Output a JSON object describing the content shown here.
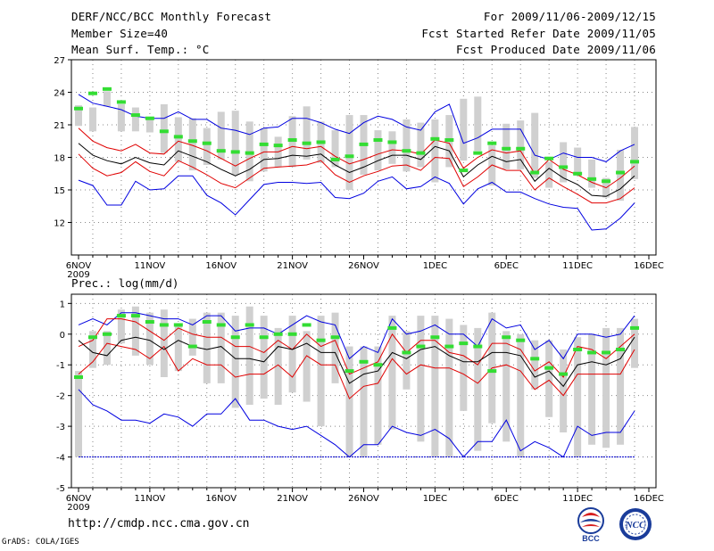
{
  "header": {
    "title": "DERF/NCC/BCC Monthly Forecast",
    "member_size": "Member Size=40",
    "variable": "Mean Surf. Temp.: °C",
    "forecast_range": "For 2009/11/06-2009/12/15",
    "start_date": "Fcst Started Refer Date 2009/11/05",
    "produced_date": "Fcst Produced Date 2009/11/06"
  },
  "footer": {
    "url": "http://cmdp.ncc.cma.gov.cn",
    "credit": "GrADS: COLA/IGES",
    "logo_left_text": "BCC",
    "logo_right_text": "NCC"
  },
  "colors": {
    "max_min": "#0000e0",
    "std": "#e00000",
    "mean": "#000000",
    "box": "#d0d0d0",
    "member": "#33dd33",
    "floor": "#0000cc"
  },
  "chart_data": [
    {
      "type": "box-ensemble",
      "title": "Mean Surf. Temp.: °C",
      "x_tick_labels": [
        "6NOV",
        "11NOV",
        "16NOV",
        "21NOV",
        "26NOV",
        "1DEC",
        "6DEC",
        "11DEC",
        "16DEC"
      ],
      "x_tick_days": [
        1,
        6,
        11,
        16,
        21,
        26,
        31,
        36,
        41
      ],
      "x_year_label": "2009",
      "xlim": [
        0.5,
        41.5
      ],
      "ylim": [
        9,
        27
      ],
      "y_ticks": [
        12,
        15,
        18,
        21,
        24,
        27
      ],
      "days": [
        1,
        2,
        3,
        4,
        5,
        6,
        7,
        8,
        9,
        10,
        11,
        12,
        13,
        14,
        15,
        16,
        17,
        18,
        19,
        20,
        21,
        22,
        23,
        24,
        25,
        26,
        27,
        28,
        29,
        30,
        31,
        32,
        33,
        34,
        35,
        36,
        37,
        38,
        39,
        40
      ],
      "series": [
        {
          "name": "max",
          "values": [
            23.8,
            23,
            22.7,
            22.4,
            21.8,
            21.6,
            21.6,
            22.2,
            21.5,
            21.5,
            20.7,
            20.5,
            20.1,
            20.7,
            20.8,
            21.6,
            21.6,
            21.2,
            20.6,
            20.2,
            21.2,
            21.8,
            21.5,
            20.8,
            20.5,
            22.2,
            22.9,
            19.3,
            19.8,
            20.6,
            20.6,
            20.6,
            18.2,
            17.8,
            18.4,
            18,
            18,
            17.6,
            18.6,
            19.2
          ]
        },
        {
          "name": "mean_plus_std",
          "values": [
            20.7,
            19.5,
            18.9,
            18.6,
            19.2,
            18.4,
            18.3,
            19.5,
            19.1,
            18.6,
            17.9,
            17.2,
            17.9,
            18.5,
            18.5,
            19,
            18.8,
            19,
            18.1,
            17.4,
            17.8,
            18.3,
            18.7,
            18.6,
            18.3,
            19.6,
            19.3,
            17,
            18,
            18.7,
            18.4,
            18.6,
            16.5,
            17.8,
            16.9,
            16.4,
            15.7,
            15.2,
            16.1,
            17.2
          ]
        },
        {
          "name": "mean",
          "values": [
            19.3,
            18.2,
            17.7,
            17.4,
            18,
            17.5,
            17.3,
            18.6,
            18.1,
            17.6,
            16.9,
            16.3,
            16.9,
            17.8,
            17.9,
            18.2,
            18.1,
            18.3,
            17.3,
            16.6,
            17.1,
            17.7,
            18.2,
            18.2,
            17.8,
            19,
            18.6,
            16.2,
            17.3,
            18.1,
            17.6,
            17.8,
            15.8,
            17,
            16.1,
            15.5,
            14.5,
            14.4,
            15.1,
            16.3
          ]
        },
        {
          "name": "mean_minus_std",
          "values": [
            18.3,
            17,
            16.3,
            16.6,
            17.6,
            16.7,
            16.3,
            17.7,
            17.1,
            16.4,
            15.6,
            15.2,
            16.1,
            17,
            17.1,
            17.2,
            17.3,
            17.7,
            16.4,
            15.7,
            16.3,
            16.7,
            17.2,
            17.3,
            16.8,
            18,
            17.9,
            15.3,
            16.2,
            17.3,
            16.8,
            16.8,
            15,
            16.1,
            15.3,
            14.6,
            13.8,
            13.8,
            14.2,
            15.2
          ]
        },
        {
          "name": "min",
          "values": [
            15.9,
            15.4,
            13.6,
            13.6,
            15.8,
            15,
            15.1,
            16.3,
            16.3,
            14.5,
            13.8,
            12.7,
            14.1,
            15.5,
            15.7,
            15.7,
            15.6,
            15.7,
            14.3,
            14.2,
            14.7,
            15.8,
            16.2,
            15.1,
            15.3,
            16.2,
            15.6,
            13.7,
            15.1,
            15.7,
            14.8,
            14.8,
            14.2,
            13.7,
            13.4,
            13.3,
            11.3,
            11.4,
            12.4,
            13.8
          ]
        },
        {
          "name": "box_top",
          "values": [
            22.8,
            22.6,
            24.1,
            22.9,
            22.6,
            21.6,
            22.9,
            21.7,
            21.6,
            20.7,
            22.2,
            22.3,
            21.3,
            20.7,
            19.9,
            21.8,
            22.7,
            21.3,
            20.5,
            21.9,
            21.9,
            20.5,
            20.4,
            21.5,
            21.2,
            21.5,
            21.9,
            23.4,
            23.6,
            19.1,
            21.1,
            21.4,
            22.1,
            17.6,
            19.4,
            18.9,
            17.8,
            16.1,
            18.7,
            20.8
          ]
        },
        {
          "name": "box_bottom",
          "values": [
            20.9,
            20.4,
            22.7,
            20.4,
            20.4,
            20.3,
            18.4,
            17.6,
            16.8,
            17.3,
            17.8,
            16.4,
            15.8,
            16.7,
            17.1,
            17.1,
            17.8,
            17.5,
            17.1,
            15,
            16.4,
            16.8,
            17.4,
            16.7,
            17.1,
            15.7,
            17.1,
            17.7,
            18.6,
            15.4,
            16.9,
            16.9,
            16.1,
            15.2,
            15.7,
            16.3,
            15.2,
            14.3,
            14,
            16
          ]
        },
        {
          "name": "member",
          "values": [
            22.5,
            23.9,
            24.3,
            23.1,
            21.9,
            21.6,
            20.4,
            19.9,
            19.5,
            19.3,
            18.6,
            18.5,
            18.4,
            19.2,
            19.1,
            19.6,
            19.3,
            19.4,
            17.8,
            18.1,
            19.2,
            19.6,
            19.4,
            18.6,
            18.4,
            19.7,
            19.6,
            16.8,
            18.4,
            19.3,
            18.8,
            18.8,
            16.6,
            17.9,
            17.1,
            16.5,
            16,
            15.8,
            16.6,
            17.6
          ]
        }
      ]
    },
    {
      "type": "box-ensemble",
      "title": "Prec.: log(mm/d)",
      "x_tick_labels": [
        "6NOV",
        "11NOV",
        "16NOV",
        "21NOV",
        "26NOV",
        "1DEC",
        "6DEC",
        "11DEC",
        "16DEC"
      ],
      "x_tick_days": [
        1,
        6,
        11,
        16,
        21,
        26,
        31,
        36,
        41
      ],
      "x_year_label": "2009",
      "xlim": [
        0.5,
        41.5
      ],
      "ylim": [
        -5,
        1.3
      ],
      "y_ticks": [
        -5,
        -4,
        -3,
        -2,
        -1,
        0,
        1
      ],
      "days": [
        1,
        2,
        3,
        4,
        5,
        6,
        7,
        8,
        9,
        10,
        11,
        12,
        13,
        14,
        15,
        16,
        17,
        18,
        19,
        20,
        21,
        22,
        23,
        24,
        25,
        26,
        27,
        28,
        29,
        30,
        31,
        32,
        33,
        34,
        35,
        36,
        37,
        38,
        39,
        40
      ],
      "series": [
        {
          "name": "max",
          "values": [
            0.3,
            0.5,
            0.3,
            0.7,
            0.7,
            0.6,
            0.5,
            0.5,
            0.3,
            0.6,
            0.6,
            0.1,
            0.2,
            0.2,
            0,
            0.3,
            0.6,
            0.4,
            0.3,
            -0.8,
            -0.4,
            -0.6,
            0.5,
            0,
            0.1,
            0.3,
            0,
            0,
            -0.4,
            0.5,
            0.2,
            0.3,
            -0.5,
            -0.2,
            -0.8,
            0,
            0,
            -0.1,
            0,
            0.6
          ]
        },
        {
          "name": "mean_plus_std",
          "values": [
            -0.4,
            -0.2,
            0.5,
            0.5,
            0.4,
            0.1,
            -0.2,
            0.2,
            0,
            -0.1,
            -0.1,
            -0.4,
            -0.4,
            -0.6,
            -0.2,
            -0.5,
            0,
            -0.4,
            -0.2,
            -1.3,
            -1.1,
            -0.9,
            0,
            -0.6,
            -0.2,
            -0.2,
            -0.6,
            -0.7,
            -1,
            -0.3,
            -0.3,
            -0.5,
            -1.2,
            -0.9,
            -1.4,
            -0.4,
            -0.5,
            -0.8,
            -0.4,
            0
          ]
        },
        {
          "name": "mean",
          "values": [
            -0.2,
            -0.6,
            -0.7,
            -0.2,
            -0.1,
            -0.2,
            -0.5,
            -0.2,
            -0.4,
            -0.5,
            -0.4,
            -0.8,
            -0.8,
            -0.9,
            -0.4,
            -0.5,
            -0.3,
            -0.6,
            -0.6,
            -1.6,
            -1.3,
            -1.2,
            -0.6,
            -0.8,
            -0.5,
            -0.4,
            -0.7,
            -0.9,
            -0.9,
            -0.6,
            -0.6,
            -0.7,
            -1.4,
            -1.2,
            -1.7,
            -1,
            -0.9,
            -1,
            -0.8,
            -0.1
          ]
        },
        {
          "name": "mean_minus_std",
          "values": [
            -1.3,
            -0.9,
            -0.3,
            -0.4,
            -0.5,
            -0.8,
            -0.4,
            -1.2,
            -0.8,
            -1,
            -1,
            -1.4,
            -1.3,
            -1.3,
            -1,
            -1.4,
            -0.7,
            -1,
            -1,
            -2.1,
            -1.7,
            -1.6,
            -0.8,
            -1.3,
            -1,
            -1.1,
            -1.1,
            -1.3,
            -1.6,
            -1.1,
            -1,
            -1.2,
            -1.8,
            -1.5,
            -2,
            -1.3,
            -1.3,
            -1.3,
            -1.3,
            -0.5
          ]
        },
        {
          "name": "min",
          "values": [
            -1.8,
            -2.3,
            -2.5,
            -2.8,
            -2.8,
            -2.9,
            -2.6,
            -2.7,
            -3,
            -2.6,
            -2.6,
            -2.1,
            -2.8,
            -2.8,
            -3,
            -3.1,
            -3,
            -3.3,
            -3.6,
            -4,
            -3.6,
            -3.6,
            -3,
            -3.2,
            -3.3,
            -3.1,
            -3.4,
            -4,
            -3.5,
            -3.5,
            -2.8,
            -3.8,
            -3.5,
            -3.7,
            -4,
            -3,
            -3.3,
            -3.2,
            -3.2,
            -2.5
          ]
        },
        {
          "name": "box_top",
          "values": [
            -1.2,
            0.1,
            0.1,
            0.8,
            0.9,
            0.7,
            0.8,
            0.3,
            0.5,
            0.7,
            0.7,
            0.6,
            0.9,
            0.6,
            0.2,
            0.6,
            0.1,
            0.6,
            0.7,
            -0.4,
            -0.4,
            -0.4,
            0.6,
            0.1,
            0.6,
            0.6,
            0.5,
            0.3,
            0.2,
            0.7,
            0.1,
            0,
            -0.2,
            -0.2,
            -0.5,
            -0.1,
            0,
            0.2,
            0.2,
            0.5
          ]
        },
        {
          "name": "box_bottom",
          "values": [
            -4,
            -1.1,
            -1,
            -0.3,
            -0.7,
            -1,
            -1.4,
            -1.2,
            -0.7,
            -1.6,
            -1.6,
            -2.4,
            -2.3,
            -2.1,
            -2.3,
            -1.9,
            -2.2,
            -3,
            -1.6,
            -4,
            -4,
            -3.6,
            -3.1,
            -1.8,
            -3.5,
            -4,
            -4,
            -2.5,
            -3.8,
            -2.9,
            -3.5,
            -4,
            -1.8,
            -2.7,
            -3.2,
            -4,
            -3.6,
            -3.7,
            -3.6,
            -1.1
          ]
        },
        {
          "name": "member",
          "values": [
            -1.4,
            -0.1,
            0,
            0.6,
            0.6,
            0.4,
            0.3,
            0.3,
            -0.4,
            0.4,
            0.3,
            -0.1,
            0.3,
            -0.1,
            0,
            0,
            0.3,
            -0.2,
            -0.1,
            -1.2,
            -0.9,
            -1,
            0.2,
            -0.6,
            -0.4,
            -0.1,
            -0.4,
            -0.3,
            -0.4,
            -1.2,
            -0.1,
            -0.2,
            -0.8,
            -1.1,
            -1.3,
            -0.5,
            -0.6,
            -0.6,
            -0.5,
            0.2
          ]
        },
        {
          "name": "floor",
          "values": [
            -4,
            -4
          ]
        }
      ]
    }
  ]
}
